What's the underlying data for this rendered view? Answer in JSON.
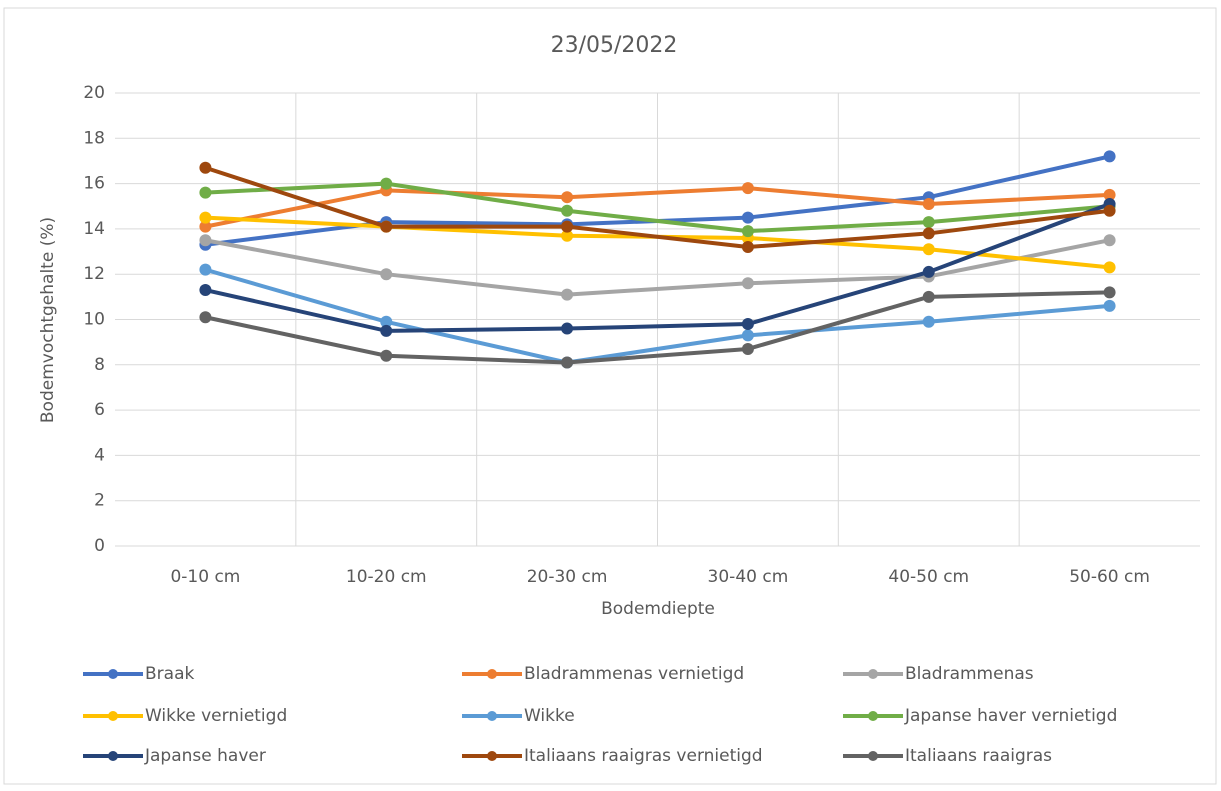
{
  "chart_data": {
    "type": "line",
    "title": "23/05/2022",
    "x_label": "Bodemdiepte",
    "y_label": "Bodemvochtgehalte (%)",
    "categories": [
      "0-10 cm",
      "10-20 cm",
      "20-30 cm",
      "30-40 cm",
      "40-50 cm",
      "50-60 cm"
    ],
    "ylim": [
      0,
      20
    ],
    "yticks": [
      0,
      2,
      4,
      6,
      8,
      10,
      12,
      14,
      16,
      18,
      20
    ],
    "grid": true,
    "legend": "bottom",
    "series": [
      {
        "name": "Braak",
        "color": "#4472c4",
        "values": [
          13.3,
          14.3,
          14.2,
          14.5,
          15.4,
          17.2
        ]
      },
      {
        "name": "Bladrammenas vernietigd",
        "color": "#ed7d31",
        "values": [
          14.1,
          15.7,
          15.4,
          15.8,
          15.1,
          15.5
        ]
      },
      {
        "name": "Bladrammenas",
        "color": "#a5a5a5",
        "values": [
          13.5,
          12.0,
          11.1,
          11.6,
          11.9,
          13.5
        ]
      },
      {
        "name": "Wikke vernietigd",
        "color": "#ffc000",
        "values": [
          14.5,
          14.1,
          13.7,
          13.6,
          13.1,
          12.3
        ]
      },
      {
        "name": "Wikke",
        "color": "#5b9bd5",
        "values": [
          12.2,
          9.9,
          8.1,
          9.3,
          9.9,
          10.6
        ]
      },
      {
        "name": "Japanse haver vernietigd",
        "color": "#70ad47",
        "values": [
          15.6,
          16.0,
          14.8,
          13.9,
          14.3,
          15.0
        ]
      },
      {
        "name": "Japanse haver",
        "color": "#264478",
        "values": [
          11.3,
          9.5,
          9.6,
          9.8,
          12.1,
          15.1
        ]
      },
      {
        "name": "Italiaans raaigras vernietigd",
        "color": "#9e480e",
        "values": [
          16.7,
          14.1,
          14.1,
          13.2,
          13.8,
          14.8
        ]
      },
      {
        "name": "Italiaans raaigras",
        "color": "#636363",
        "values": [
          10.1,
          8.4,
          8.1,
          8.7,
          11.0,
          11.2
        ]
      }
    ]
  }
}
